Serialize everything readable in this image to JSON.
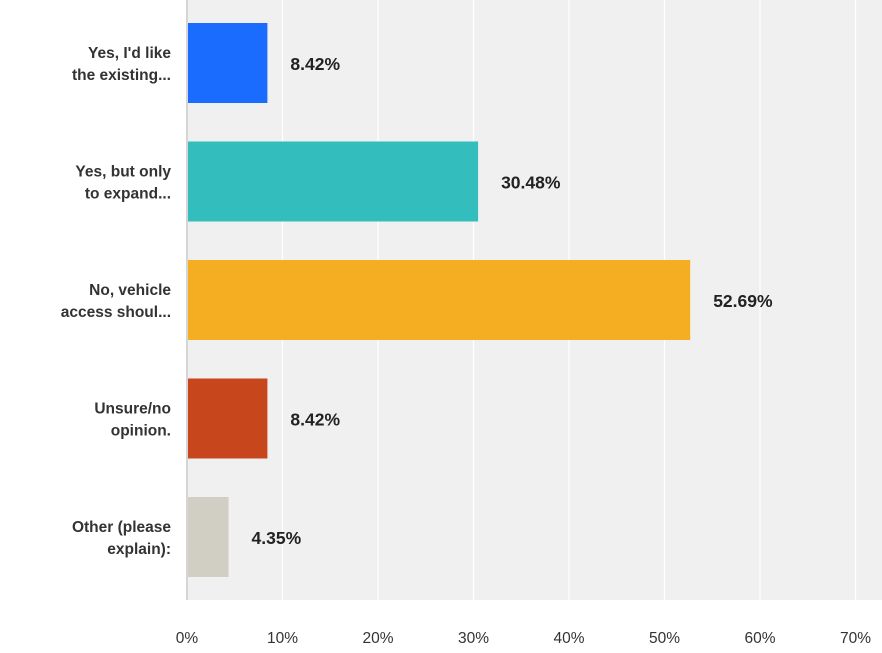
{
  "colors": {
    "plot_background": "#f0f0f0",
    "gridline": "#ffffff",
    "axis_line": "#d5d5d5",
    "label_text": "#333333",
    "value_text": "#222222"
  },
  "chart_data": {
    "type": "bar",
    "orientation": "horizontal",
    "title": "",
    "xlabel": "",
    "ylabel": "",
    "xlim": [
      0,
      70
    ],
    "x_ticks": [
      0,
      10,
      20,
      30,
      40,
      50,
      60,
      70
    ],
    "x_tick_labels": [
      "0%",
      "10%",
      "20%",
      "30%",
      "40%",
      "50%",
      "60%",
      "70%"
    ],
    "grid": "vertical",
    "legend": "none",
    "categories": [
      [
        "Yes, I'd like",
        "the existing..."
      ],
      [
        "Yes, but only",
        "to expand..."
      ],
      [
        "No, vehicle",
        "access shoul..."
      ],
      [
        "Unsure/no",
        "opinion."
      ],
      [
        "Other (please",
        "explain):"
      ]
    ],
    "values": [
      8.42,
      30.48,
      52.69,
      8.42,
      4.35
    ],
    "value_labels": [
      "8.42%",
      "30.48%",
      "52.69%",
      "8.42%",
      "4.35%"
    ],
    "bar_colors": [
      "#1a6cff",
      "#33bdbd",
      "#f5ad21",
      "#c8461c",
      "#d1cfc3"
    ]
  }
}
